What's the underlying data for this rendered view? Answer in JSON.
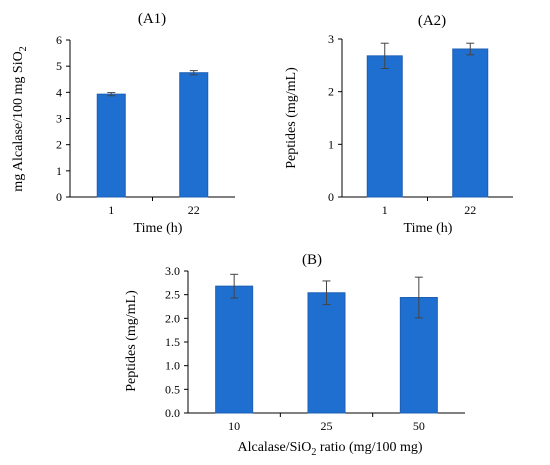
{
  "colors": {
    "bar": "#1f6fd1",
    "bar_edge": "#1d5fb3",
    "error_bar": "#444444",
    "axis": "#000000"
  },
  "chart_data": [
    {
      "type": "bar",
      "title": "(A1)",
      "xlabel": "Time  (h)",
      "ylabel": "mg Alcalase/100 mg SiO",
      "ylabel_subscript": "2",
      "categories": [
        "1",
        "22"
      ],
      "values": [
        3.93,
        4.75
      ],
      "errors": [
        0.06,
        0.08
      ],
      "ylim": [
        0,
        6
      ],
      "yticks": [
        "0",
        "1",
        "2",
        "3",
        "4",
        "5",
        "6"
      ],
      "grid": false
    },
    {
      "type": "bar",
      "title": "(A2)",
      "xlabel": "Time  (h)",
      "ylabel": "Peptides (mg/mL)",
      "categories": [
        "1",
        "22"
      ],
      "values": [
        2.68,
        2.81
      ],
      "errors": [
        0.24,
        0.11
      ],
      "ylim": [
        0,
        3
      ],
      "yticks": [
        "0",
        "1",
        "2",
        "3"
      ],
      "grid": false
    },
    {
      "type": "bar",
      "title": "(B)",
      "xlabel": "Alcalase/SiO",
      "xlabel_subscript": "2",
      "xlabel_suffix": " ratio (mg/100 mg)",
      "ylabel": "Peptides (mg/mL)",
      "categories": [
        "10",
        "25",
        "50"
      ],
      "values": [
        2.68,
        2.54,
        2.44
      ],
      "errors": [
        0.25,
        0.25,
        0.43
      ],
      "ylim": [
        0,
        3
      ],
      "yticks": [
        "0.0",
        "0.5",
        "1.0",
        "1.5",
        "2.0",
        "2.5",
        "3.0"
      ],
      "grid": false
    }
  ]
}
